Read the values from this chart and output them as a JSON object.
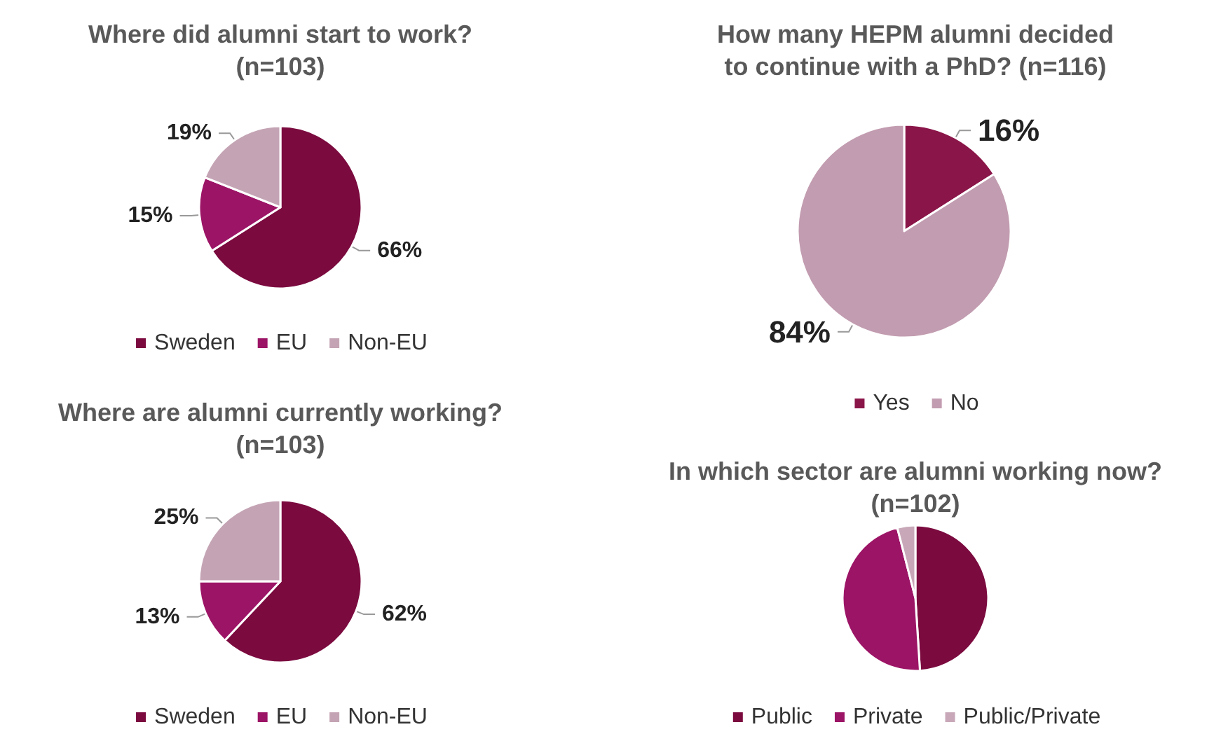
{
  "chart_data": [
    {
      "type": "pie",
      "title": "Where did alumni start to work?\n(n=103)",
      "categories": [
        "Sweden",
        "EU",
        "Non-EU"
      ],
      "values": [
        66,
        15,
        19
      ],
      "colors": [
        "#7b0a3f",
        "#9c1466",
        "#c4a4b4"
      ],
      "value_labels": [
        "66%",
        "15%",
        "19%"
      ],
      "legend": "bottom"
    },
    {
      "type": "pie",
      "title": "How many HEPM alumni decided\nto continue with a PhD? (n=116)",
      "categories": [
        "Yes",
        "No"
      ],
      "values": [
        16,
        84
      ],
      "colors": [
        "#8a1548",
        "#c29cb0"
      ],
      "value_labels": [
        "16%",
        "84%"
      ],
      "legend": "bottom"
    },
    {
      "type": "pie",
      "title": "Where are alumni currently working?\n(n=103)",
      "categories": [
        "Sweden",
        "EU",
        "Non-EU"
      ],
      "values": [
        62,
        13,
        25
      ],
      "colors": [
        "#7b0a3f",
        "#9c1466",
        "#c4a4b4"
      ],
      "value_labels": [
        "62%",
        "13%",
        "25%"
      ],
      "legend": "bottom"
    },
    {
      "type": "pie",
      "title": "In which sector are alumni working now?\n(n=102)",
      "categories": [
        "Public",
        "Private",
        "Public/Private"
      ],
      "values": [
        49,
        47,
        4
      ],
      "colors": [
        "#7b0a3f",
        "#9c1466",
        "#c8a8b8"
      ],
      "legend": "bottom"
    }
  ]
}
